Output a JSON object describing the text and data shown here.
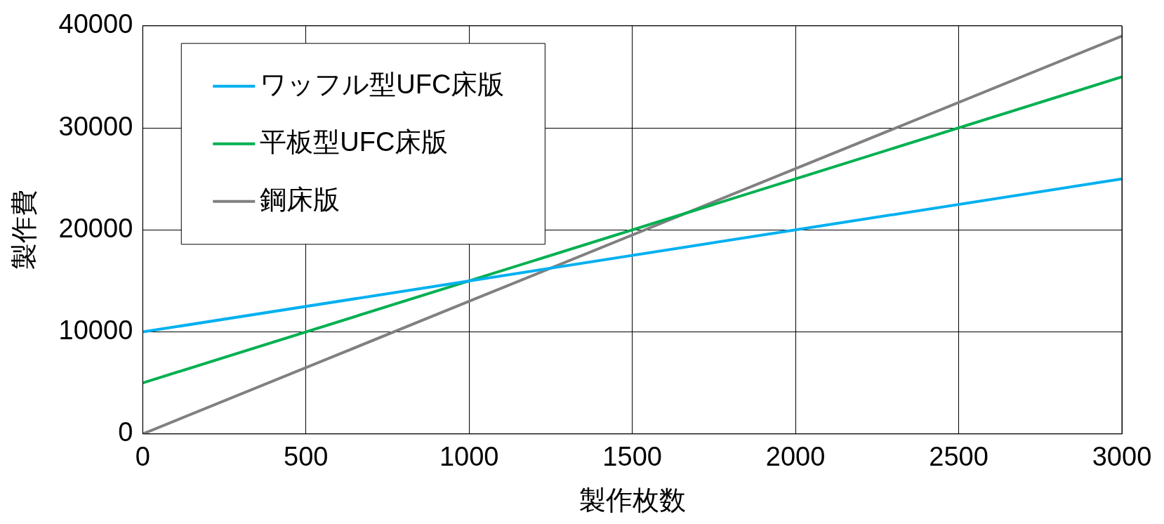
{
  "chart_data": {
    "type": "line",
    "xlabel": "製作枚数",
    "ylabel": "製作費",
    "x": [
      0,
      1000,
      2000,
      3000
    ],
    "series": [
      {
        "name": "ワッフル型UFC床版",
        "color": "#00b0f0",
        "values": [
          10000,
          15000,
          20000,
          25000
        ]
      },
      {
        "name": "平板型UFC床版",
        "color": "#00b050",
        "values": [
          5000,
          15000,
          25000,
          35000
        ]
      },
      {
        "name": "鋼床版",
        "color": "#808080",
        "values": [
          0,
          13000,
          26000,
          39000
        ]
      }
    ],
    "xlim": [
      0,
      3000
    ],
    "xticks": [
      0,
      500,
      1000,
      1500,
      2000,
      2500,
      3000
    ],
    "ylim": [
      0,
      40000
    ],
    "yticks": [
      0,
      10000,
      20000,
      30000,
      40000
    ],
    "grid": true,
    "legend": "top left",
    "marker": "none",
    "line_style": "solid"
  }
}
